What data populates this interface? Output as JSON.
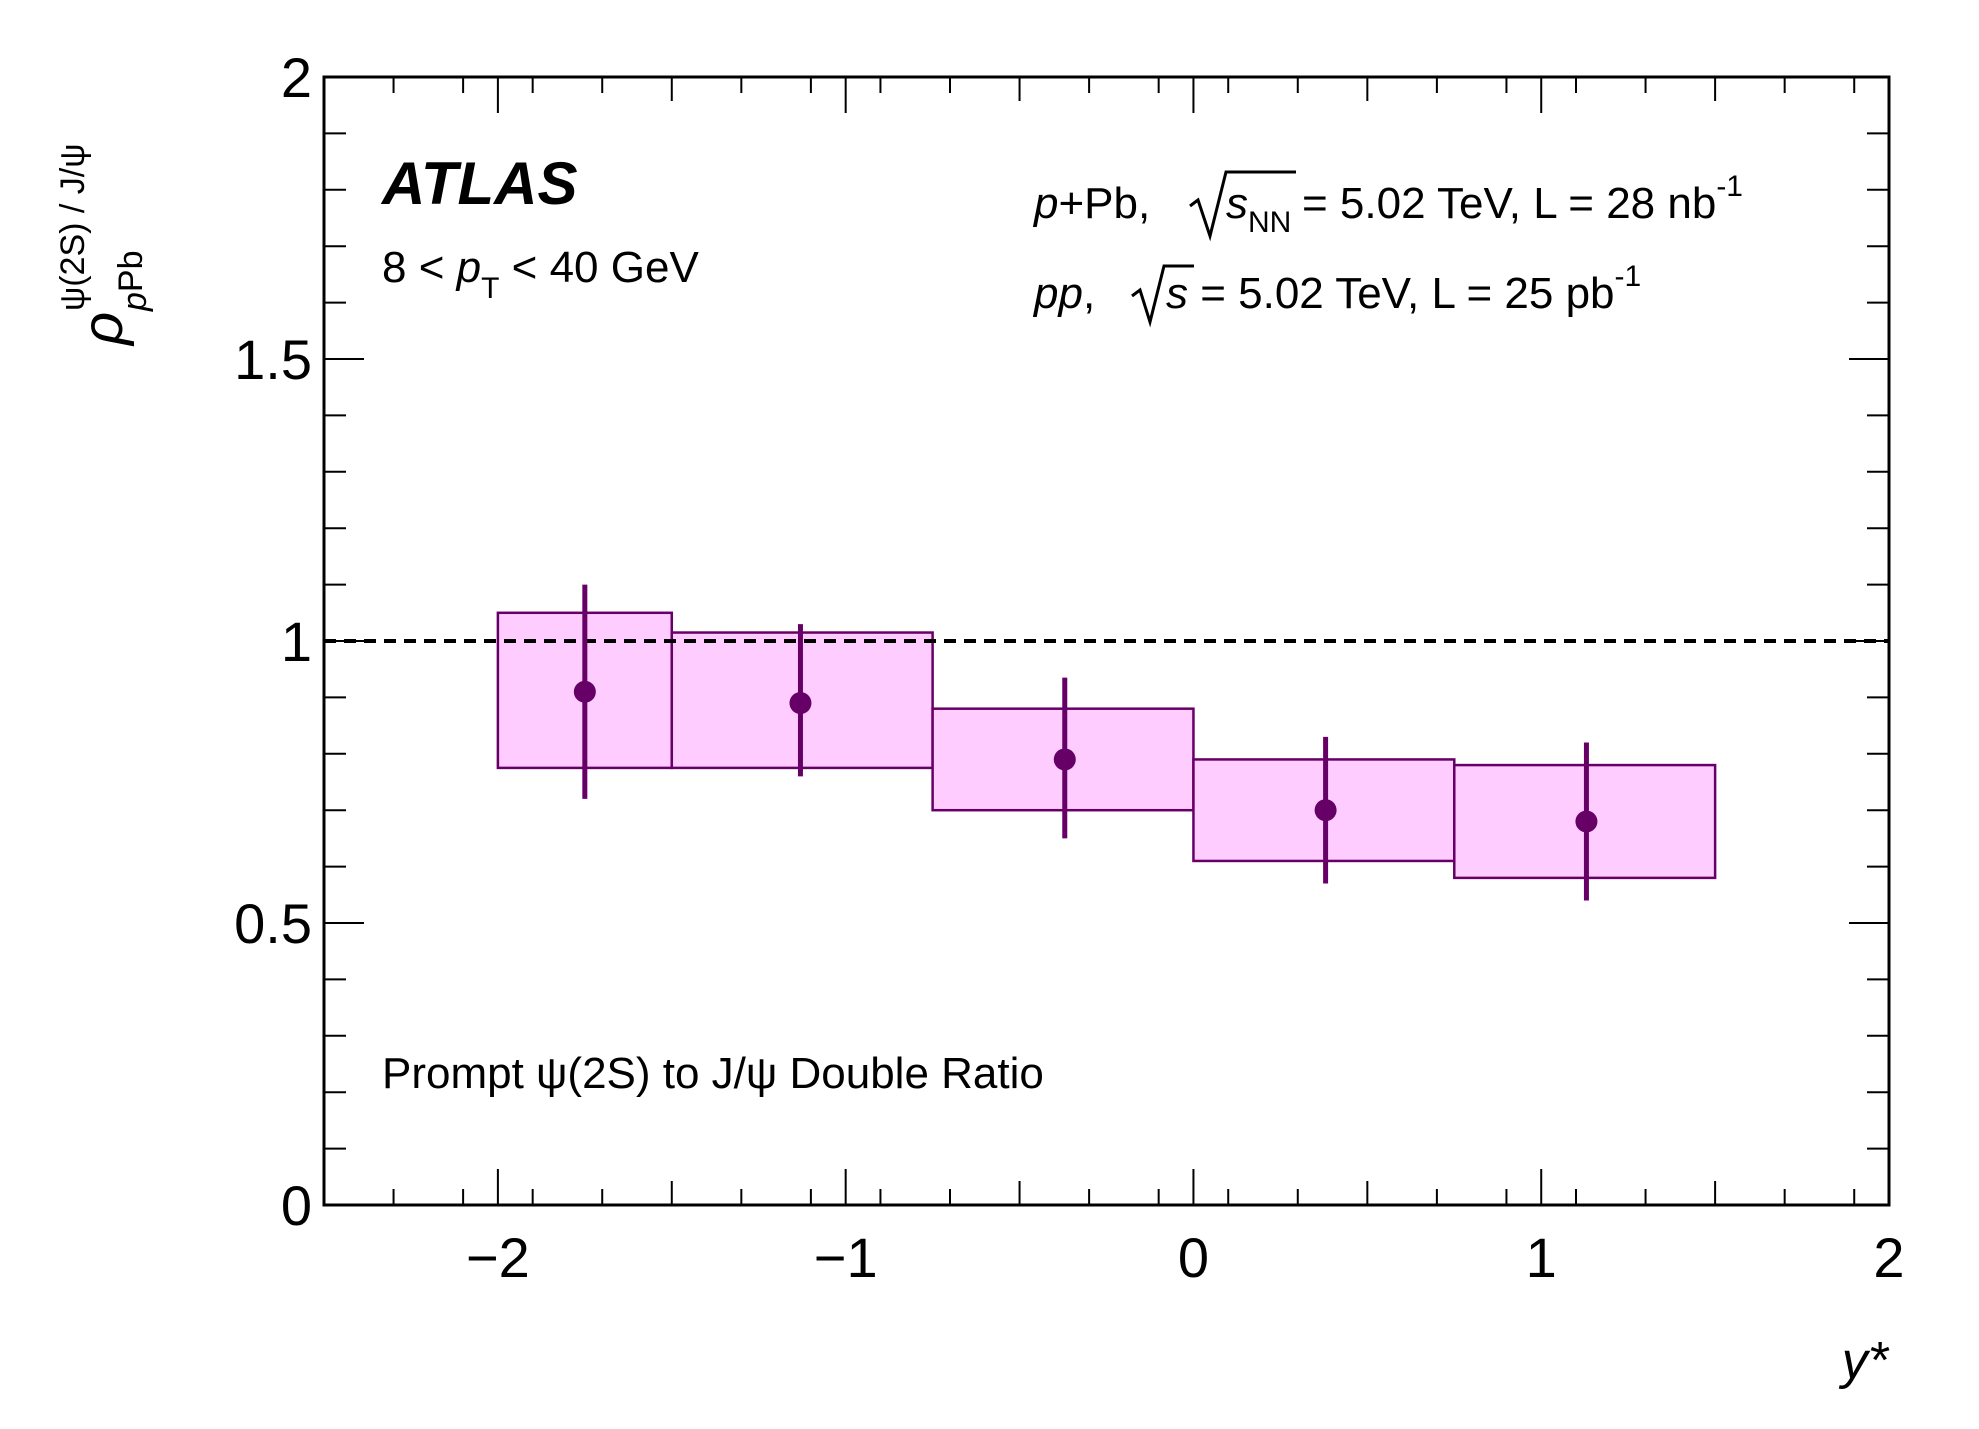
{
  "chart_data": {
    "type": "scatter",
    "x_axis": {
      "title": "y*",
      "range": [
        -2.5,
        2
      ],
      "tick_labels": [
        "−2",
        "−1",
        "0",
        "1",
        "2"
      ],
      "tick_values": [
        -2,
        -1,
        0,
        1,
        2
      ]
    },
    "y_axis": {
      "title_symbol": "ρ",
      "title_superscript": "ψ(2S) / J/ψ",
      "title_subscript_italic": "p",
      "title_subscript": "Pb",
      "range": [
        0,
        2
      ],
      "tick_labels": [
        "0",
        "0.5",
        "1",
        "1.5",
        "2"
      ],
      "tick_values": [
        0,
        0.5,
        1,
        1.5,
        2
      ]
    },
    "reference_line": {
      "y": 1,
      "style": "dashed"
    },
    "series": [
      {
        "marker_color": "#660066",
        "box_fill": "#ffccff",
        "box_stroke": "#660066",
        "points": [
          {
            "x": -1.75,
            "y": 0.91,
            "stat_low": 0.72,
            "stat_high": 1.1,
            "bin_low": -2.0,
            "bin_high": -1.5,
            "sys_low": 0.775,
            "sys_high": 1.05
          },
          {
            "x": -1.13,
            "y": 0.89,
            "stat_low": 0.76,
            "stat_high": 1.03,
            "bin_low": -1.5,
            "bin_high": -0.75,
            "sys_low": 0.775,
            "sys_high": 1.015
          },
          {
            "x": -0.37,
            "y": 0.79,
            "stat_low": 0.65,
            "stat_high": 0.935,
            "bin_low": -0.75,
            "bin_high": 0.0,
            "sys_low": 0.7,
            "sys_high": 0.88
          },
          {
            "x": 0.38,
            "y": 0.7,
            "stat_low": 0.57,
            "stat_high": 0.83,
            "bin_low": 0.0,
            "bin_high": 0.75,
            "sys_low": 0.61,
            "sys_high": 0.79
          },
          {
            "x": 1.13,
            "y": 0.68,
            "stat_low": 0.54,
            "stat_high": 0.82,
            "bin_low": 0.75,
            "bin_high": 1.5,
            "sys_low": 0.58,
            "sys_high": 0.78
          }
        ]
      }
    ],
    "annotations": {
      "experiment": "ATLAS",
      "pt_range_prefix": "8 < ",
      "pt_symbol": "p",
      "pt_subscript": "T",
      "pt_range_suffix": " < 40 GeV",
      "ppb_system": "p",
      "ppb_system_rest": "+Pb, ",
      "ppb_sqrt_symbol": "s",
      "ppb_sqrt_subscript": "NN",
      "ppb_energy": " = 5.02 TeV, L = 28 nb",
      "ppb_lumi_exponent": "-1",
      "pp_system": "pp",
      "pp_sep": ", ",
      "pp_sqrt_symbol": "s",
      "pp_energy": " = 5.02 TeV, L = 25 pb",
      "pp_lumi_exponent": "-1",
      "plot_label": "Prompt ψ(2S) to J/ψ Double Ratio"
    }
  }
}
